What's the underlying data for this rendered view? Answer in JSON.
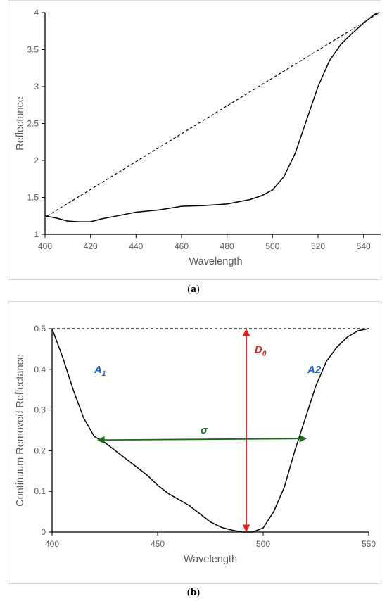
{
  "chart_data": [
    {
      "type": "line",
      "title": "",
      "xlabel": "Wavelength",
      "ylabel": "Reflectance",
      "xlim": [
        400,
        550
      ],
      "ylim": [
        1,
        4
      ],
      "x_ticks": [
        400,
        420,
        440,
        460,
        480,
        500,
        520,
        540
      ],
      "y_ticks": [
        1,
        1.5,
        2,
        2.5,
        3,
        3.5,
        4
      ],
      "y_tick_labels": [
        "1",
        "1.5",
        "2",
        "2.5",
        "3",
        "3.5",
        "4"
      ],
      "grid": false,
      "series": [
        {
          "style": "solid",
          "x": [
            400,
            405,
            410,
            415,
            420,
            425,
            430,
            440,
            450,
            460,
            470,
            480,
            490,
            495,
            500,
            505,
            510,
            515,
            520,
            525,
            530,
            535,
            540,
            545,
            547
          ],
          "y": [
            1.25,
            1.22,
            1.18,
            1.17,
            1.17,
            1.21,
            1.24,
            1.3,
            1.33,
            1.38,
            1.39,
            1.41,
            1.47,
            1.52,
            1.6,
            1.78,
            2.1,
            2.55,
            3.0,
            3.35,
            3.57,
            3.72,
            3.86,
            3.98,
            4.0
          ]
        },
        {
          "style": "dashed",
          "x": [
            401,
            547
          ],
          "y": [
            1.25,
            4.0
          ]
        }
      ]
    },
    {
      "type": "line",
      "title": "",
      "xlabel": "Wavelength",
      "ylabel": "Continuum Removed Reflectance",
      "xlim": [
        400,
        550
      ],
      "ylim": [
        0,
        0.5
      ],
      "x_ticks": [
        400,
        450,
        500,
        550
      ],
      "y_ticks": [
        0,
        0.1,
        0.2,
        0.3,
        0.4,
        0.5
      ],
      "y_tick_labels": [
        "0",
        "0.1",
        "0.2",
        "0.3",
        "0.4",
        "0.5"
      ],
      "grid": false,
      "series": [
        {
          "style": "solid",
          "x": [
            400,
            405,
            410,
            415,
            420,
            425,
            430,
            435,
            440,
            445,
            450,
            455,
            460,
            465,
            470,
            475,
            480,
            485,
            490,
            495,
            500,
            505,
            510,
            515,
            520,
            525,
            530,
            535,
            540,
            545,
            550
          ],
          "y": [
            0.5,
            0.43,
            0.35,
            0.28,
            0.235,
            0.22,
            0.2,
            0.18,
            0.16,
            0.14,
            0.115,
            0.095,
            0.08,
            0.065,
            0.045,
            0.025,
            0.012,
            0.005,
            0.0,
            0.0,
            0.01,
            0.05,
            0.11,
            0.2,
            0.28,
            0.36,
            0.42,
            0.455,
            0.48,
            0.495,
            0.5
          ]
        },
        {
          "style": "dashed",
          "x": [
            400,
            550
          ],
          "y": [
            0.5,
            0.5
          ]
        }
      ],
      "annotations": {
        "a1": {
          "text": "A",
          "sub": "1",
          "color": "#1f5fbf",
          "x": 420,
          "y": 0.4
        },
        "a2": {
          "text": "A2",
          "color": "#1f5fbf",
          "x": 521,
          "y": 0.4
        },
        "d0": {
          "text": "D",
          "sub": "0",
          "color": "#e02020",
          "x": 492,
          "y_from": 0.0,
          "y_to": 0.5
        },
        "sigma": {
          "text": "σ",
          "color": "#1a6b1a",
          "x_from": 422,
          "x_to": 520,
          "y": 0.228
        }
      }
    }
  ],
  "captions": {
    "a_open": "(",
    "a_letter": "a",
    "a_close": ")",
    "b_open": "(",
    "b_letter": "b",
    "b_close": ")"
  }
}
